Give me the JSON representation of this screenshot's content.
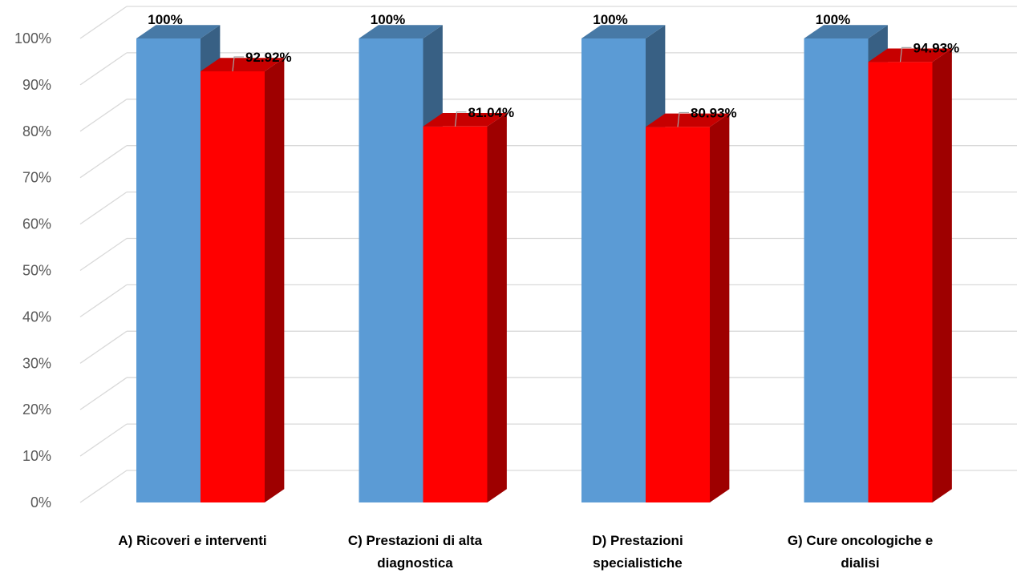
{
  "chart_data": {
    "type": "bar",
    "categories": [
      [
        "A) Ricoveri e interventi"
      ],
      [
        "C) Prestazioni di alta",
        "diagnostica"
      ],
      [
        "D) Prestazioni",
        "specialistiche"
      ],
      [
        "G) Cure oncologiche e",
        "dialisi"
      ]
    ],
    "series": [
      {
        "values": [
          100,
          100,
          100,
          100
        ],
        "labels": [
          "100%",
          "100%",
          "100%",
          "100%"
        ],
        "color": "#5B9BD5"
      },
      {
        "values": [
          92.92,
          81.04,
          80.93,
          94.93
        ],
        "labels": [
          "92.92%",
          "81.04%",
          "80.93%",
          "94.93%"
        ],
        "color": "#FF0000"
      }
    ],
    "y_ticks": [
      "0%",
      "10%",
      "20%",
      "30%",
      "40%",
      "50%",
      "60%",
      "70%",
      "80%",
      "90%",
      "100%"
    ],
    "ylim": [
      0,
      100
    ],
    "grid": true,
    "style": "3d-clustered-column"
  }
}
